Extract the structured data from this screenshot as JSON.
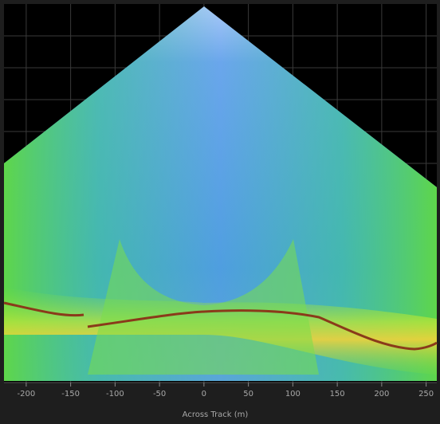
{
  "axis": {
    "label": "Across Track (m)",
    "lim": [
      -225,
      262
    ],
    "ticks": [
      -200,
      -150,
      -100,
      -50,
      0,
      50,
      100,
      150,
      200,
      250
    ]
  }
}
